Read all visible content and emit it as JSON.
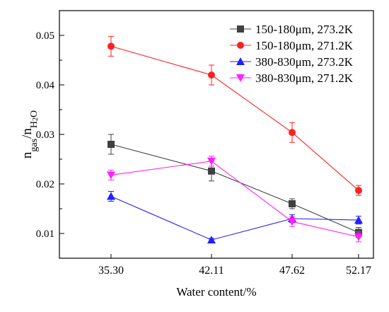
{
  "chart_data": {
    "type": "line",
    "categories": [
      "35.30",
      "42.11",
      "47.62",
      "52.17"
    ],
    "xlabel": "Water content/%",
    "ylabel": {
      "base_n": "n",
      "sub_gas": "gas",
      "slash": "/",
      "base_n2": "n",
      "sub_h": "H",
      "sub_2": "2",
      "sub_o": "O"
    },
    "ylim": [
      0.005,
      0.055
    ],
    "yticks": [
      "0.01",
      "0.02",
      "0.03",
      "0.04",
      "0.05"
    ],
    "ytick_values": [
      0.01,
      0.02,
      0.03,
      0.04,
      0.05
    ],
    "legend_position": "top-right",
    "series": [
      {
        "name": "150-180μm, 273.2K",
        "color": "#404040",
        "marker": "square",
        "values": [
          0.028,
          0.0226,
          0.016,
          0.0102
        ],
        "errors": [
          0.002,
          0.002,
          0.001,
          0.001
        ]
      },
      {
        "name": "150-180μm, 271.2K",
        "color": "#ff2020",
        "marker": "circle",
        "values": [
          0.0478,
          0.042,
          0.0304,
          0.0187
        ],
        "errors": [
          0.002,
          0.002,
          0.002,
          0.001
        ]
      },
      {
        "name": "380-830μm, 273.2K",
        "color": "#2020ff",
        "marker": "triangle-up",
        "values": [
          0.0175,
          0.0087,
          0.013,
          0.0127
        ],
        "errors": [
          0.001,
          0.0003,
          0.0008,
          0.0008
        ]
      },
      {
        "name": "380-830μm, 271.2K",
        "color": "#ff20ff",
        "marker": "triangle-down",
        "values": [
          0.0218,
          0.0246,
          0.0124,
          0.0093
        ],
        "errors": [
          0.001,
          0.001,
          0.001,
          0.001
        ]
      }
    ]
  }
}
